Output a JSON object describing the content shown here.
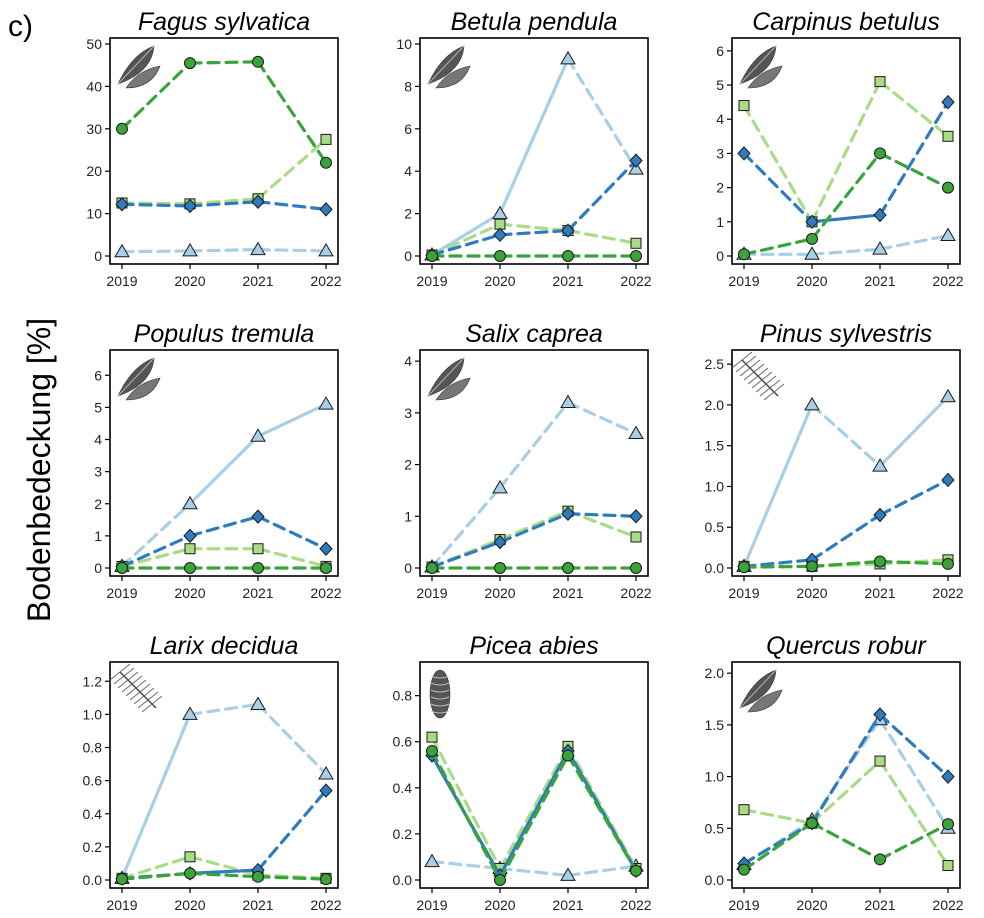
{
  "panel_label": "c)",
  "y_axis_label": "Bodenbedeckung [%]",
  "colors": {
    "dark_blue": "#2e7bbf",
    "light_blue": "#a9cfe6",
    "dark_green": "#3aa33a",
    "light_green": "#a9dc86"
  },
  "series_markers": {
    "dark_blue": "diamond",
    "light_blue": "triangle",
    "dark_green": "circle",
    "light_green": "square"
  },
  "chart_data": [
    {
      "type": "line",
      "title": "Fagus sylvatica",
      "icon": "beech-leaf-icon",
      "x": [
        "2019",
        "2020",
        "2021",
        "2022"
      ],
      "ylim": [
        0,
        50
      ],
      "yticks": [
        0,
        10,
        20,
        30,
        40,
        50
      ],
      "ytick_labels": [
        "0",
        "10",
        "20",
        "30",
        "40",
        "50"
      ],
      "series": [
        {
          "color": "light_blue",
          "values": [
            1,
            1.2,
            1.5,
            1.2
          ],
          "styles": [
            "dashed",
            "dashed",
            "dashed"
          ]
        },
        {
          "color": "light_green",
          "values": [
            12.5,
            12.3,
            13.5,
            27.5
          ],
          "styles": [
            "dashed",
            "dashed",
            "dashed"
          ]
        },
        {
          "color": "dark_blue",
          "values": [
            12.2,
            11.8,
            12.8,
            11
          ],
          "styles": [
            "dashed",
            "dashed",
            "dashed"
          ]
        },
        {
          "color": "dark_green",
          "values": [
            30,
            45.5,
            45.8,
            22
          ],
          "styles": [
            "dashed",
            "dashed",
            "dashed"
          ]
        }
      ]
    },
    {
      "type": "line",
      "title": "Betula pendula",
      "icon": "birch-leaf-icon",
      "x": [
        "2019",
        "2020",
        "2021",
        "2022"
      ],
      "ylim": [
        0,
        10
      ],
      "yticks": [
        0,
        2,
        4,
        6,
        8,
        10
      ],
      "ytick_labels": [
        "0",
        "2",
        "4",
        "6",
        "8",
        "10"
      ],
      "series": [
        {
          "color": "light_blue",
          "values": [
            0.05,
            2,
            9.3,
            4.1
          ],
          "styles": [
            "solid",
            "solid",
            "dashed"
          ]
        },
        {
          "color": "light_green",
          "values": [
            0.05,
            1.5,
            1.2,
            0.6
          ],
          "styles": [
            "dashed",
            "dashed",
            "dashed"
          ]
        },
        {
          "color": "dark_blue",
          "values": [
            0.05,
            1,
            1.2,
            4.5
          ],
          "styles": [
            "dashed",
            "dashed",
            "dashed"
          ]
        },
        {
          "color": "dark_green",
          "values": [
            0,
            0,
            0,
            0
          ],
          "styles": [
            "dashed",
            "dashed",
            "dashed"
          ]
        }
      ]
    },
    {
      "type": "line",
      "title": "Carpinus betulus",
      "icon": "hornbeam-leaf-icon",
      "x": [
        "2019",
        "2020",
        "2021",
        "2022"
      ],
      "ylim": [
        0,
        6.2
      ],
      "yticks": [
        0,
        1,
        2,
        3,
        4,
        5,
        6
      ],
      "ytick_labels": [
        "0",
        "1",
        "2",
        "3",
        "4",
        "5",
        "6"
      ],
      "series": [
        {
          "color": "light_blue",
          "values": [
            0.05,
            0.05,
            0.2,
            0.6
          ],
          "styles": [
            "dashed",
            "dashed",
            "dashed"
          ]
        },
        {
          "color": "light_green",
          "values": [
            4.4,
            1,
            5.1,
            3.5
          ],
          "styles": [
            "dashed",
            "dashed",
            "dashed"
          ]
        },
        {
          "color": "dark_blue",
          "values": [
            3,
            1,
            1.2,
            4.5
          ],
          "styles": [
            "dashed",
            "solid",
            "dashed"
          ]
        },
        {
          "color": "dark_green",
          "values": [
            0.05,
            0.5,
            3,
            2
          ],
          "styles": [
            "dashed",
            "dashed",
            "dashed"
          ]
        }
      ]
    },
    {
      "type": "line",
      "title": "Populus tremula",
      "icon": "aspen-leaf-icon",
      "x": [
        "2019",
        "2020",
        "2021",
        "2022"
      ],
      "ylim": [
        0,
        6.6
      ],
      "yticks": [
        0,
        1,
        2,
        3,
        4,
        5,
        6
      ],
      "ytick_labels": [
        "0",
        "1",
        "2",
        "3",
        "4",
        "5",
        "6"
      ],
      "series": [
        {
          "color": "light_blue",
          "values": [
            0.05,
            2,
            4.1,
            5.1
          ],
          "styles": [
            "dashed",
            "solid",
            "solid"
          ]
        },
        {
          "color": "light_green",
          "values": [
            0.05,
            0.6,
            0.6,
            0.05
          ],
          "styles": [
            "dashed",
            "dashed",
            "dashed"
          ]
        },
        {
          "color": "dark_blue",
          "values": [
            0.05,
            1,
            1.6,
            0.6
          ],
          "styles": [
            "dashed",
            "dashed",
            "dashed"
          ]
        },
        {
          "color": "dark_green",
          "values": [
            0,
            0,
            0,
            0
          ],
          "styles": [
            "dashed",
            "dashed",
            "dashed"
          ]
        }
      ]
    },
    {
      "type": "line",
      "title": "Salix caprea",
      "icon": "willow-leaf-icon",
      "x": [
        "2019",
        "2020",
        "2021",
        "2022"
      ],
      "ylim": [
        0,
        4.1
      ],
      "yticks": [
        0,
        1,
        2,
        3,
        4
      ],
      "ytick_labels": [
        "0",
        "1",
        "2",
        "3",
        "4"
      ],
      "series": [
        {
          "color": "light_blue",
          "values": [
            0.02,
            1.55,
            3.2,
            2.6
          ],
          "styles": [
            "dashed",
            "dashed",
            "dashed"
          ]
        },
        {
          "color": "light_green",
          "values": [
            0.02,
            0.55,
            1.1,
            0.6
          ],
          "styles": [
            "dashed",
            "dashed",
            "dashed"
          ]
        },
        {
          "color": "dark_blue",
          "values": [
            0.02,
            0.5,
            1.05,
            1
          ],
          "styles": [
            "dashed",
            "dashed",
            "dashed"
          ]
        },
        {
          "color": "dark_green",
          "values": [
            0,
            0,
            0,
            0
          ],
          "styles": [
            "dashed",
            "dashed",
            "dashed"
          ]
        }
      ]
    },
    {
      "type": "line",
      "title": "Pinus sylvestris",
      "icon": "pine-branch-icon",
      "x": [
        "2019",
        "2020",
        "2021",
        "2022"
      ],
      "ylim": [
        0,
        2.6
      ],
      "yticks": [
        0,
        0.5,
        1,
        1.5,
        2,
        2.5
      ],
      "ytick_labels": [
        "0.0",
        "0.5",
        "1.0",
        "1.5",
        "2.0",
        "2.5"
      ],
      "series": [
        {
          "color": "light_blue",
          "values": [
            0.02,
            2,
            1.25,
            2.1
          ],
          "styles": [
            "solid",
            "dashed",
            "solid"
          ]
        },
        {
          "color": "light_green",
          "values": [
            0.02,
            0.02,
            0.05,
            0.1
          ],
          "styles": [
            "dashed",
            "dashed",
            "dashed"
          ]
        },
        {
          "color": "dark_blue",
          "values": [
            0.02,
            0.1,
            0.65,
            1.08
          ],
          "styles": [
            "dashed",
            "dashed",
            "dashed"
          ]
        },
        {
          "color": "dark_green",
          "values": [
            0.01,
            0.02,
            0.08,
            0.05
          ],
          "styles": [
            "dashed",
            "dashed",
            "dashed"
          ]
        }
      ]
    },
    {
      "type": "line",
      "title": "Larix decidua",
      "icon": "larch-branch-icon",
      "x": [
        "2019",
        "2020",
        "2021",
        "2022"
      ],
      "ylim": [
        0,
        1.28
      ],
      "yticks": [
        0,
        0.2,
        0.4,
        0.6,
        0.8,
        1,
        1.2
      ],
      "ytick_labels": [
        "0.0",
        "0.2",
        "0.4",
        "0.6",
        "0.8",
        "1.0",
        "1.2"
      ],
      "series": [
        {
          "color": "light_blue",
          "values": [
            0.01,
            1,
            1.06,
            0.64
          ],
          "styles": [
            "solid",
            "dashed",
            "dashed"
          ]
        },
        {
          "color": "light_green",
          "values": [
            0.01,
            0.14,
            0.03,
            0.01
          ],
          "styles": [
            "dashed",
            "dashed",
            "dashed"
          ]
        },
        {
          "color": "dark_blue",
          "values": [
            0.01,
            0.04,
            0.06,
            0.54
          ],
          "styles": [
            "dashed",
            "solid",
            "dashed"
          ]
        },
        {
          "color": "dark_green",
          "values": [
            0.005,
            0.04,
            0.02,
            0.005
          ],
          "styles": [
            "dashed",
            "dashed",
            "dashed"
          ]
        }
      ]
    },
    {
      "type": "line",
      "title": "Picea abies",
      "icon": "spruce-cone-icon",
      "x": [
        "2019",
        "2020",
        "2021",
        "2022"
      ],
      "ylim": [
        0,
        0.92
      ],
      "yticks": [
        0,
        0.2,
        0.4,
        0.6,
        0.8
      ],
      "ytick_labels": [
        "0.0",
        "0.2",
        "0.4",
        "0.6",
        "0.8"
      ],
      "series": [
        {
          "color": "light_blue",
          "values": [
            0.08,
            0.05,
            0.02,
            0.06
          ],
          "styles": [
            "dashed",
            "dashed",
            "dashed"
          ]
        },
        {
          "color": "light_green",
          "values": [
            0.62,
            0.05,
            0.58,
            0.05
          ],
          "styles": [
            "dashed",
            "dashed",
            "dashed"
          ]
        },
        {
          "color": "dark_blue",
          "values": [
            0.54,
            0.02,
            0.56,
            0.04
          ],
          "styles": [
            "solid",
            "solid",
            "solid"
          ]
        },
        {
          "color": "dark_green",
          "values": [
            0.56,
            0,
            0.54,
            0.04
          ],
          "styles": [
            "dashed",
            "dashed",
            "dashed"
          ]
        }
      ]
    },
    {
      "type": "line",
      "title": "Quercus robur",
      "icon": "oak-leaf-icon",
      "x": [
        "2019",
        "2020",
        "2021",
        "2022"
      ],
      "ylim": [
        0,
        2.05
      ],
      "yticks": [
        0,
        0.5,
        1,
        1.5,
        2
      ],
      "ytick_labels": [
        "0.0",
        "0.5",
        "1.0",
        "1.5",
        "2.0"
      ],
      "series": [
        {
          "color": "light_blue",
          "values": [
            0.15,
            0.58,
            1.55,
            0.5
          ],
          "styles": [
            "dashed",
            "dashed",
            "dashed"
          ]
        },
        {
          "color": "light_green",
          "values": [
            0.68,
            0.55,
            1.15,
            0.14
          ],
          "styles": [
            "dashed",
            "dashed",
            "dashed"
          ]
        },
        {
          "color": "dark_blue",
          "values": [
            0.16,
            0.55,
            1.6,
            1
          ],
          "styles": [
            "dashed",
            "dashed",
            "dashed"
          ]
        },
        {
          "color": "dark_green",
          "values": [
            0.1,
            0.55,
            0.2,
            0.54
          ],
          "styles": [
            "dashed",
            "dashed",
            "dashed"
          ]
        }
      ]
    }
  ]
}
